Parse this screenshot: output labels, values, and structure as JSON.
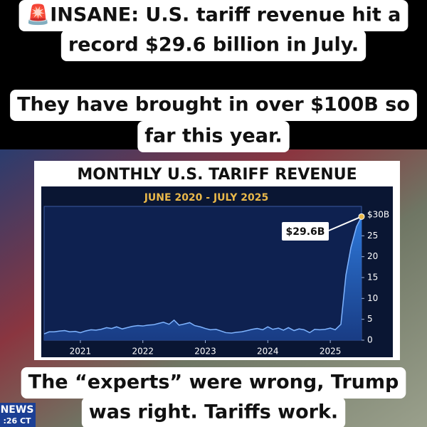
{
  "captions": {
    "top": [
      "🚨INSANE: U.S. tariff revenue hit a",
      "record $29.6 billion in July."
    ],
    "middle": [
      "They have brought in over $100B so",
      "far this year."
    ],
    "bottom": [
      "The “experts” were wrong, Trump",
      "was right. Tariffs work."
    ]
  },
  "logo": {
    "brand": "NEWS",
    "time": ":26 CT"
  },
  "chart_data": {
    "type": "area",
    "title": "MONTHLY U.S. TARIFF REVENUE",
    "subtitle": "JUNE 2020 - JULY 2025",
    "annotation": "$29.6B",
    "color": "#2f7de1",
    "x": [
      2020.42,
      2020.5,
      2020.58,
      2020.67,
      2020.75,
      2020.83,
      2020.92,
      2021.0,
      2021.08,
      2021.17,
      2021.25,
      2021.33,
      2021.42,
      2021.5,
      2021.58,
      2021.67,
      2021.75,
      2021.83,
      2021.92,
      2022.0,
      2022.08,
      2022.17,
      2022.25,
      2022.33,
      2022.42,
      2022.5,
      2022.58,
      2022.67,
      2022.75,
      2022.83,
      2022.92,
      2023.0,
      2023.08,
      2023.17,
      2023.25,
      2023.33,
      2023.42,
      2023.5,
      2023.58,
      2023.67,
      2023.75,
      2023.83,
      2023.92,
      2024.0,
      2024.08,
      2024.17,
      2024.25,
      2024.33,
      2024.42,
      2024.5,
      2024.58,
      2024.67,
      2024.75,
      2024.83,
      2024.92,
      2025.0,
      2025.08,
      2025.17,
      2025.25,
      2025.33,
      2025.42,
      2025.5
    ],
    "values": [
      1.5,
      2,
      2,
      2.2,
      2.3,
      2,
      2.1,
      1.8,
      2.2,
      2.5,
      2.4,
      2.6,
      3,
      2.8,
      3.2,
      2.7,
      3,
      3.3,
      3.5,
      3.4,
      3.6,
      3.7,
      4,
      4.3,
      3.8,
      4.8,
      3.6,
      3.9,
      4.2,
      3.5,
      3.2,
      2.8,
      2.5,
      2.6,
      2.2,
      1.8,
      1.7,
      1.9,
      2,
      2.3,
      2.6,
      2.8,
      2.5,
      3.2,
      2.6,
      2.9,
      2.4,
      3,
      2.3,
      2.7,
      2.5,
      1.8,
      2.6,
      2.5,
      2.6,
      2.9,
      2.5,
      3.8,
      15.6,
      22.2,
      27.2,
      29.6
    ],
    "xlim": [
      2020.42,
      2025.5
    ],
    "xticks": [
      2021,
      2022,
      2023,
      2024,
      2025
    ],
    "ylim": [
      0,
      30
    ],
    "yticks": [
      0,
      5,
      10,
      15,
      20,
      25,
      {
        "value": 30,
        "label": "$30B"
      }
    ]
  }
}
